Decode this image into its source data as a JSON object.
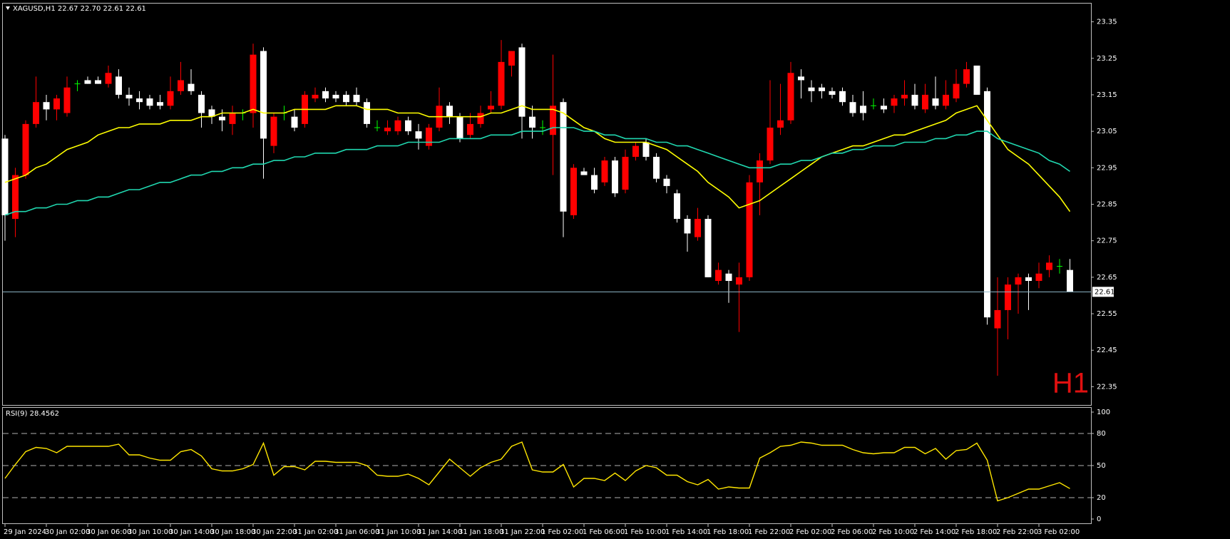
{
  "chart_data": [
    {
      "type": "candlestick",
      "title": "XAGUSD,H1  22.67 22.70 22.61 22.61",
      "watermark": "H1",
      "categories": [
        "29 Jan 2024",
        null,
        null,
        null,
        "30 Jan 02:00",
        null,
        null,
        null,
        "30 Jan 06:00",
        null,
        null,
        null,
        "30 Jan 10:00",
        null,
        null,
        null,
        "30 Jan 14:00",
        null,
        null,
        null,
        "30 Jan 18:00",
        null,
        null,
        null,
        "30 Jan 22:00",
        null,
        null,
        null,
        "31 Jan 02:00",
        null,
        null,
        null,
        "31 Jan 06:00",
        null,
        null,
        null,
        "31 Jan 10:00",
        null,
        null,
        null,
        "31 Jan 14:00",
        null,
        null,
        null,
        "31 Jan 18:00",
        null,
        null,
        null,
        "31 Jan 22:00",
        null,
        null,
        null,
        "1 Feb 02:00",
        null,
        null,
        null,
        "1 Feb 06:00",
        null,
        null,
        null,
        "1 Feb 10:00",
        null,
        null,
        null,
        "1 Feb 14:00",
        null,
        null,
        null,
        "1 Feb 18:00",
        null,
        null,
        null,
        "1 Feb 22:00",
        null,
        null,
        null,
        "2 Feb 02:00",
        null,
        null,
        null,
        "2 Feb 06:00",
        null,
        null,
        null,
        "2 Feb 10:00",
        null,
        null,
        null,
        "2 Feb 14:00",
        null,
        null,
        null,
        "2 Feb 18:00",
        null,
        null,
        null,
        "2 Feb 22:00",
        null,
        null,
        null,
        "3 Feb 02:00",
        null,
        null,
        null
      ],
      "open": [
        23.03,
        22.81,
        22.93,
        23.07,
        23.13,
        23.11,
        23.1,
        23.18,
        23.19,
        23.19,
        23.18,
        23.2,
        23.15,
        23.14,
        23.14,
        23.13,
        23.12,
        23.16,
        23.18,
        23.15,
        23.11,
        23.09,
        23.07,
        23.1,
        23.1,
        23.27,
        23.01,
        23.1,
        23.09,
        23.07,
        23.14,
        23.16,
        23.15,
        23.15,
        23.15,
        23.13,
        23.06,
        23.05,
        23.05,
        23.08,
        23.05,
        23.01,
        23.06,
        23.12,
        23.09,
        23.04,
        23.07,
        23.11,
        23.12,
        23.23,
        23.28,
        23.09,
        23.06,
        23.04,
        23.13,
        22.82,
        22.94,
        22.93,
        22.91,
        22.97,
        22.89,
        22.98,
        23.02,
        22.98,
        22.92,
        22.88,
        22.81,
        22.76,
        22.81,
        22.64,
        22.66,
        22.63,
        22.65,
        22.91,
        22.97,
        23.06,
        23.08,
        23.2,
        23.17,
        23.17,
        23.16,
        23.16,
        23.13,
        23.12,
        23.12,
        23.12,
        23.12,
        23.14,
        23.15,
        23.11,
        23.14,
        23.12,
        23.14,
        23.18,
        23.23,
        23.16,
        22.51,
        22.56,
        22.63,
        22.65,
        22.64,
        22.67,
        22.68,
        22.67
      ],
      "high": [
        23.04,
        22.95,
        23.08,
        23.2,
        23.15,
        23.15,
        23.2,
        23.19,
        23.2,
        23.2,
        23.23,
        23.22,
        23.17,
        23.16,
        23.15,
        23.15,
        23.2,
        23.24,
        23.22,
        23.16,
        23.12,
        23.11,
        23.12,
        23.11,
        23.29,
        23.28,
        23.1,
        23.12,
        23.11,
        23.16,
        23.17,
        23.17,
        23.16,
        23.16,
        23.17,
        23.14,
        23.08,
        23.08,
        23.09,
        23.09,
        23.07,
        23.07,
        23.17,
        23.13,
        23.1,
        23.1,
        23.12,
        23.16,
        23.3,
        23.27,
        23.29,
        23.12,
        23.08,
        23.26,
        23.14,
        22.96,
        22.95,
        22.95,
        22.98,
        22.98,
        23.0,
        23.02,
        23.03,
        22.99,
        22.93,
        22.89,
        22.82,
        22.84,
        22.82,
        22.69,
        22.67,
        22.69,
        22.93,
        22.99,
        23.19,
        23.18,
        23.24,
        23.22,
        23.19,
        23.18,
        23.17,
        23.17,
        23.15,
        23.16,
        23.14,
        23.14,
        23.15,
        23.19,
        23.18,
        23.18,
        23.2,
        23.19,
        23.22,
        23.24,
        23.23,
        23.17,
        22.65,
        22.65,
        22.66,
        22.66,
        22.69,
        22.71,
        22.7,
        22.7
      ],
      "low": [
        22.75,
        22.76,
        22.92,
        23.06,
        23.08,
        23.08,
        23.09,
        23.16,
        23.18,
        23.18,
        23.17,
        23.14,
        23.12,
        23.11,
        23.11,
        23.11,
        23.11,
        23.15,
        23.15,
        23.06,
        23.07,
        23.05,
        23.04,
        23.08,
        23.06,
        22.92,
        22.99,
        23.08,
        23.05,
        23.06,
        23.13,
        23.13,
        23.13,
        23.12,
        23.12,
        23.06,
        23.05,
        23.04,
        23.04,
        23.04,
        23.0,
        23.0,
        23.05,
        23.07,
        23.02,
        23.03,
        23.06,
        23.1,
        23.11,
        23.2,
        23.03,
        23.03,
        23.04,
        22.93,
        22.76,
        22.81,
        22.93,
        22.88,
        22.9,
        22.87,
        22.88,
        22.97,
        22.97,
        22.91,
        22.88,
        22.8,
        22.72,
        22.75,
        22.65,
        22.63,
        22.58,
        22.5,
        22.64,
        22.82,
        22.96,
        23.04,
        23.07,
        23.14,
        23.13,
        23.14,
        23.14,
        23.12,
        23.09,
        23.08,
        23.11,
        23.1,
        23.1,
        23.12,
        23.11,
        23.1,
        23.11,
        23.11,
        23.13,
        23.17,
        23.15,
        22.52,
        22.38,
        22.48,
        22.55,
        22.56,
        22.62,
        22.65,
        22.66,
        22.61
      ],
      "close": [
        22.82,
        22.93,
        23.07,
        23.13,
        23.11,
        23.14,
        23.17,
        23.18,
        23.18,
        23.18,
        23.21,
        23.15,
        23.14,
        23.13,
        23.12,
        23.12,
        23.16,
        23.19,
        23.16,
        23.1,
        23.09,
        23.08,
        23.1,
        23.1,
        23.26,
        23.03,
        23.09,
        23.1,
        23.06,
        23.15,
        23.15,
        23.14,
        23.14,
        23.13,
        23.13,
        23.07,
        23.06,
        23.06,
        23.08,
        23.05,
        23.03,
        23.06,
        23.12,
        23.09,
        23.03,
        23.07,
        23.1,
        23.12,
        23.24,
        23.27,
        23.09,
        23.06,
        23.06,
        23.12,
        22.83,
        22.95,
        22.93,
        22.89,
        22.97,
        22.88,
        22.98,
        23.01,
        22.98,
        22.92,
        22.9,
        22.81,
        22.77,
        22.81,
        22.65,
        22.67,
        22.64,
        22.65,
        22.91,
        22.97,
        23.06,
        23.08,
        23.21,
        23.19,
        23.16,
        23.16,
        23.15,
        23.13,
        23.1,
        23.1,
        23.12,
        23.11,
        23.14,
        23.15,
        23.12,
        23.15,
        23.12,
        23.15,
        23.18,
        23.22,
        23.15,
        22.54,
        22.56,
        22.63,
        22.65,
        22.64,
        22.66,
        22.69,
        22.68,
        22.61
      ],
      "up_color": "#ff0000",
      "down_color": "#ffffff",
      "doji_color": "#00ff00",
      "series": [
        {
          "color": "#ffff00",
          "values": [
            22.91,
            22.92,
            22.93,
            22.95,
            22.96,
            22.98,
            23.0,
            23.01,
            23.02,
            23.04,
            23.05,
            23.06,
            23.06,
            23.07,
            23.07,
            23.07,
            23.08,
            23.08,
            23.08,
            23.09,
            23.09,
            23.1,
            23.1,
            23.1,
            23.11,
            23.1,
            23.1,
            23.1,
            23.11,
            23.11,
            23.11,
            23.11,
            23.12,
            23.12,
            23.12,
            23.11,
            23.11,
            23.11,
            23.1,
            23.1,
            23.1,
            23.09,
            23.09,
            23.09,
            23.09,
            23.09,
            23.09,
            23.1,
            23.1,
            23.11,
            23.12,
            23.11,
            23.11,
            23.11,
            23.1,
            23.08,
            23.06,
            23.05,
            23.03,
            23.02,
            23.02,
            23.02,
            23.02,
            23.01,
            23.0,
            22.98,
            22.96,
            22.94,
            22.91,
            22.89,
            22.87,
            22.84,
            22.85,
            22.86,
            22.88,
            22.9,
            22.92,
            22.94,
            22.96,
            22.98,
            22.99,
            23.0,
            23.01,
            23.01,
            23.02,
            23.03,
            23.04,
            23.04,
            23.05,
            23.06,
            23.07,
            23.08,
            23.1,
            23.11,
            23.12,
            23.08,
            23.04,
            23.0,
            22.98,
            22.96,
            22.93,
            22.9,
            22.87,
            22.83
          ]
        },
        {
          "color": "#20d8b0",
          "values": [
            22.82,
            22.83,
            22.83,
            22.84,
            22.84,
            22.85,
            22.85,
            22.86,
            22.86,
            22.87,
            22.87,
            22.88,
            22.89,
            22.89,
            22.9,
            22.91,
            22.91,
            22.92,
            22.93,
            22.93,
            22.94,
            22.94,
            22.95,
            22.95,
            22.96,
            22.96,
            22.97,
            22.97,
            22.98,
            22.98,
            22.99,
            22.99,
            22.99,
            23.0,
            23.0,
            23.0,
            23.01,
            23.01,
            23.01,
            23.02,
            23.02,
            23.02,
            23.02,
            23.03,
            23.03,
            23.03,
            23.03,
            23.04,
            23.04,
            23.04,
            23.05,
            23.05,
            23.05,
            23.06,
            23.06,
            23.06,
            23.05,
            23.05,
            23.04,
            23.04,
            23.03,
            23.03,
            23.03,
            23.02,
            23.02,
            23.01,
            23.01,
            23.0,
            22.99,
            22.98,
            22.97,
            22.96,
            22.95,
            22.95,
            22.95,
            22.96,
            22.96,
            22.97,
            22.97,
            22.98,
            22.99,
            22.99,
            23.0,
            23.0,
            23.01,
            23.01,
            23.01,
            23.02,
            23.02,
            23.02,
            23.03,
            23.03,
            23.04,
            23.04,
            23.05,
            23.05,
            23.03,
            23.02,
            23.01,
            23.0,
            22.99,
            22.97,
            22.96,
            22.94
          ]
        }
      ],
      "ylim": [
        22.3,
        23.4
      ],
      "yticks": [
        23.35,
        23.25,
        23.15,
        23.05,
        22.95,
        22.85,
        22.75,
        22.65,
        22.55,
        22.45,
        22.35
      ],
      "grid": false
    },
    {
      "type": "line",
      "title": "RSI(9) 28.4562",
      "series": [
        {
          "color": "#ffe600",
          "values": [
            38,
            51,
            63,
            67,
            66,
            62,
            68,
            68,
            68,
            68,
            68,
            70,
            60,
            60,
            57,
            55,
            55,
            63,
            65,
            59,
            47,
            45,
            45,
            47,
            51,
            71,
            41,
            49,
            49,
            46,
            54,
            54,
            53,
            53,
            53,
            50,
            41,
            40,
            40,
            42,
            38,
            32,
            44,
            56,
            48,
            40,
            48,
            53,
            56,
            68,
            72,
            46,
            44,
            44,
            51,
            30,
            38,
            38,
            36,
            43,
            36,
            45,
            50,
            48,
            41,
            41,
            35,
            32,
            37,
            28,
            30,
            29,
            29,
            57,
            62,
            68,
            69,
            72,
            71,
            69,
            69,
            69,
            65,
            62,
            61,
            62,
            62,
            67,
            67,
            61,
            66,
            56,
            64,
            65,
            71,
            55,
            17,
            20,
            24,
            28,
            28,
            31,
            34,
            28.4562
          ]
        }
      ],
      "ylim": [
        -4,
        104
      ],
      "yticks": [
        100,
        80,
        50,
        20,
        0
      ],
      "level_lines": "dashed"
    }
  ]
}
